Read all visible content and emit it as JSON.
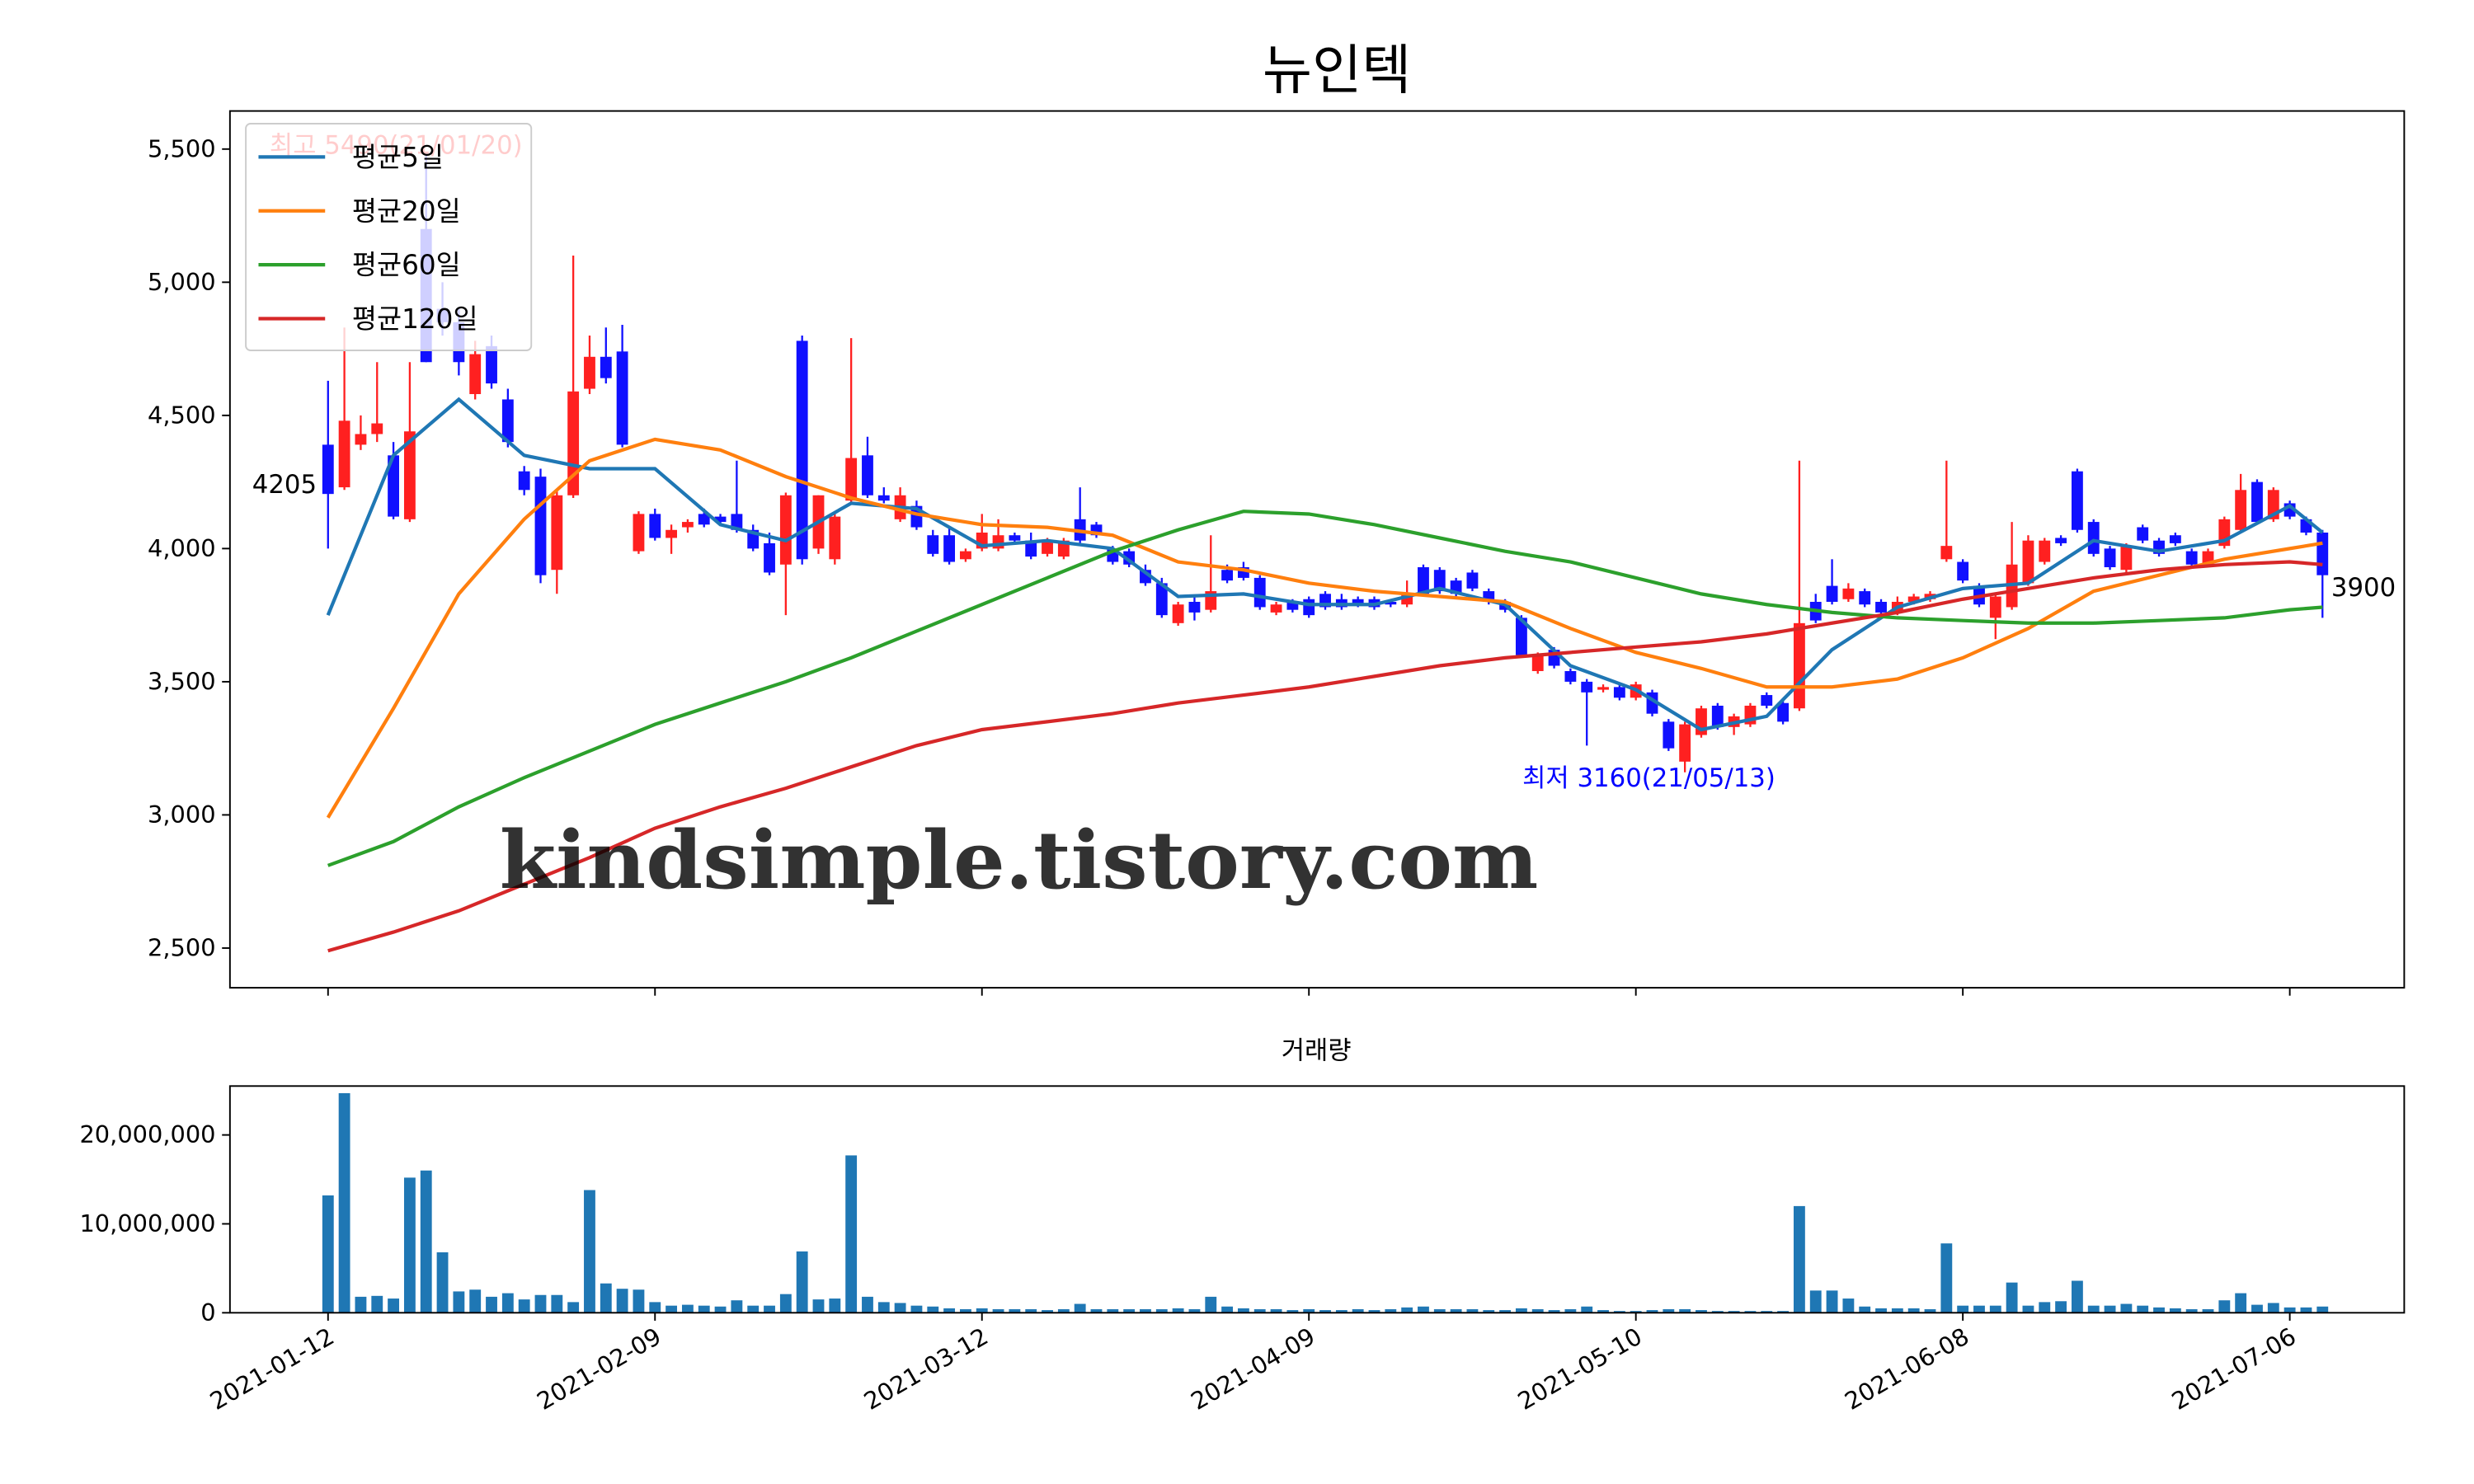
{
  "chart_data": [
    {
      "type": "candlestick",
      "title": "뉴인텍",
      "up_color": "#ff2020",
      "down_color": "#1010ff",
      "xlim": [
        -6,
        127
      ],
      "ylim": [
        2351,
        5643
      ],
      "yticks": [
        {
          "value": 2500,
          "label": "2,500"
        },
        {
          "value": 3000,
          "label": "3,000"
        },
        {
          "value": 3500,
          "label": "3,500"
        },
        {
          "value": 4000,
          "label": "4,000"
        },
        {
          "value": 4500,
          "label": "4,500"
        },
        {
          "value": 5000,
          "label": "5,000"
        },
        {
          "value": 5500,
          "label": "5,500"
        }
      ],
      "legend": "upper left",
      "watermark": "kindsimple.tistory.com",
      "annotations": [
        {
          "text": "최고 5490(21/01/20)",
          "color": "#ff0000"
        },
        {
          "text": "최저 3160(21/05/13)",
          "color": "#0000ff"
        },
        {
          "text": "4205",
          "color": "#000000"
        },
        {
          "text": "3900",
          "color": "#000000"
        }
      ],
      "ohlc": [
        [
          4390,
          4630,
          4000,
          4205
        ],
        [
          4230,
          4830,
          4220,
          4480
        ],
        [
          4390,
          4500,
          4370,
          4430
        ],
        [
          4430,
          4700,
          4400,
          4470
        ],
        [
          4350,
          4400,
          4110,
          4120
        ],
        [
          4110,
          4700,
          4100,
          4440
        ],
        [
          5200,
          5490,
          4700,
          4700
        ],
        [
          4900,
          5000,
          4800,
          4850
        ],
        [
          4850,
          4900,
          4650,
          4700
        ],
        [
          4580,
          4780,
          4560,
          4730
        ],
        [
          4760,
          4800,
          4600,
          4620
        ],
        [
          4560,
          4600,
          4380,
          4400
        ],
        [
          4290,
          4310,
          4200,
          4220
        ],
        [
          4270,
          4300,
          3870,
          3900
        ],
        [
          3920,
          4220,
          3830,
          4200
        ],
        [
          4200,
          5100,
          4190,
          4590
        ],
        [
          4600,
          4800,
          4580,
          4720
        ],
        [
          4720,
          4830,
          4620,
          4640
        ],
        [
          4740,
          4840,
          4380,
          4390
        ],
        [
          3990,
          4140,
          3980,
          4130
        ],
        [
          4130,
          4150,
          4030,
          4040
        ],
        [
          4040,
          4090,
          3980,
          4070
        ],
        [
          4080,
          4110,
          4060,
          4100
        ],
        [
          4130,
          4150,
          4080,
          4090
        ],
        [
          4120,
          4130,
          4090,
          4100
        ],
        [
          4130,
          4330,
          4060,
          4070
        ],
        [
          4070,
          4090,
          3990,
          4000
        ],
        [
          4020,
          4060,
          3900,
          3910
        ],
        [
          3940,
          4210,
          3750,
          4200
        ],
        [
          4780,
          4800,
          3940,
          3960
        ],
        [
          4000,
          4200,
          3980,
          4200
        ],
        [
          3960,
          4130,
          3940,
          4120
        ],
        [
          4180,
          4790,
          4170,
          4340
        ],
        [
          4350,
          4420,
          4190,
          4200
        ],
        [
          4200,
          4230,
          4170,
          4180
        ],
        [
          4110,
          4230,
          4100,
          4200
        ],
        [
          4160,
          4180,
          4070,
          4080
        ],
        [
          4050,
          4070,
          3970,
          3980
        ],
        [
          4050,
          4080,
          3940,
          3950
        ],
        [
          3960,
          4000,
          3950,
          3990
        ],
        [
          4000,
          4130,
          3990,
          4060
        ],
        [
          4000,
          4110,
          3990,
          4050
        ],
        [
          4050,
          4060,
          4020,
          4030
        ],
        [
          4030,
          4060,
          3960,
          3970
        ],
        [
          3980,
          4040,
          3970,
          4030
        ],
        [
          3970,
          4040,
          3960,
          4030
        ],
        [
          4110,
          4230,
          4020,
          4030
        ],
        [
          4090,
          4100,
          4040,
          4050
        ],
        [
          4000,
          4010,
          3940,
          3950
        ],
        [
          3990,
          4000,
          3930,
          3940
        ],
        [
          3920,
          3940,
          3860,
          3870
        ],
        [
          3870,
          3890,
          3740,
          3750
        ],
        [
          3720,
          3800,
          3710,
          3790
        ],
        [
          3800,
          3820,
          3730,
          3760
        ],
        [
          3770,
          4050,
          3760,
          3840
        ],
        [
          3920,
          3940,
          3870,
          3880
        ],
        [
          3930,
          3950,
          3880,
          3890
        ],
        [
          3890,
          3900,
          3770,
          3780
        ],
        [
          3760,
          3800,
          3750,
          3790
        ],
        [
          3800,
          3810,
          3760,
          3770
        ],
        [
          3810,
          3820,
          3740,
          3750
        ],
        [
          3830,
          3840,
          3770,
          3780
        ],
        [
          3810,
          3830,
          3770,
          3780
        ],
        [
          3810,
          3820,
          3780,
          3790
        ],
        [
          3810,
          3820,
          3770,
          3780
        ],
        [
          3800,
          3810,
          3780,
          3790
        ],
        [
          3790,
          3880,
          3780,
          3830
        ],
        [
          3930,
          3940,
          3820,
          3830
        ],
        [
          3920,
          3930,
          3830,
          3840
        ],
        [
          3880,
          3890,
          3820,
          3830
        ],
        [
          3910,
          3920,
          3840,
          3850
        ],
        [
          3840,
          3850,
          3790,
          3800
        ],
        [
          3800,
          3810,
          3760,
          3770
        ],
        [
          3740,
          3750,
          3590,
          3600
        ],
        [
          3540,
          3610,
          3530,
          3600
        ],
        [
          3620,
          3630,
          3550,
          3560
        ],
        [
          3540,
          3550,
          3490,
          3500
        ],
        [
          3500,
          3510,
          3260,
          3460
        ],
        [
          3470,
          3490,
          3460,
          3480
        ],
        [
          3480,
          3490,
          3430,
          3440
        ],
        [
          3440,
          3500,
          3430,
          3490
        ],
        [
          3460,
          3470,
          3370,
          3380
        ],
        [
          3350,
          3360,
          3240,
          3250
        ],
        [
          3200,
          3350,
          3160,
          3340
        ],
        [
          3300,
          3410,
          3290,
          3400
        ],
        [
          3410,
          3420,
          3320,
          3330
        ],
        [
          3330,
          3380,
          3300,
          3370
        ],
        [
          3340,
          3420,
          3330,
          3410
        ],
        [
          3450,
          3460,
          3400,
          3410
        ],
        [
          3420,
          3430,
          3340,
          3350
        ],
        [
          3400,
          4330,
          3390,
          3720
        ],
        [
          3800,
          3830,
          3720,
          3730
        ],
        [
          3860,
          3960,
          3790,
          3800
        ],
        [
          3810,
          3870,
          3800,
          3850
        ],
        [
          3840,
          3850,
          3780,
          3790
        ],
        [
          3800,
          3810,
          3750,
          3760
        ],
        [
          3760,
          3820,
          3750,
          3800
        ],
        [
          3800,
          3830,
          3790,
          3820
        ],
        [
          3810,
          3840,
          3800,
          3830
        ],
        [
          3960,
          4330,
          3950,
          4010
        ],
        [
          3950,
          3960,
          3870,
          3880
        ],
        [
          3860,
          3870,
          3780,
          3790
        ],
        [
          3740,
          3830,
          3660,
          3820
        ],
        [
          3780,
          4100,
          3770,
          3940
        ],
        [
          3870,
          4050,
          3860,
          4030
        ],
        [
          3950,
          4040,
          3940,
          4030
        ],
        [
          4040,
          4050,
          4010,
          4020
        ],
        [
          4290,
          4300,
          4060,
          4070
        ],
        [
          4100,
          4110,
          3970,
          3980
        ],
        [
          4000,
          4010,
          3920,
          3930
        ],
        [
          3920,
          4020,
          3910,
          4010
        ],
        [
          4080,
          4090,
          4020,
          4030
        ],
        [
          4030,
          4040,
          3970,
          3980
        ],
        [
          4050,
          4060,
          4010,
          4020
        ],
        [
          3990,
          4000,
          3930,
          3940
        ],
        [
          3940,
          4000,
          3930,
          3990
        ],
        [
          4010,
          4120,
          4000,
          4110
        ],
        [
          4070,
          4280,
          4060,
          4220
        ],
        [
          4250,
          4260,
          4090,
          4100
        ],
        [
          4110,
          4230,
          4100,
          4220
        ],
        [
          4170,
          4180,
          4110,
          4120
        ],
        [
          4110,
          4120,
          4050,
          4060
        ],
        [
          4060,
          4070,
          3740,
          3900
        ]
      ],
      "series": [
        {
          "name": "평균5일",
          "color": "#1f77b4",
          "x": [
            0,
            4,
            8,
            12,
            16,
            20,
            24,
            28,
            32,
            36,
            40,
            44,
            48,
            52,
            56,
            60,
            64,
            68,
            72,
            76,
            80,
            84,
            88,
            92,
            96,
            100,
            104,
            108,
            112,
            116,
            120,
            122
          ],
          "values": [
            3750,
            4350,
            4560,
            4350,
            4300,
            4300,
            4090,
            4030,
            4170,
            4150,
            4010,
            4030,
            4000,
            3820,
            3830,
            3790,
            3790,
            3850,
            3790,
            3560,
            3470,
            3320,
            3370,
            3620,
            3780,
            3850,
            3870,
            4030,
            3990,
            4030,
            4160,
            4060
          ]
        },
        {
          "name": "평균20일",
          "color": "#ff7f0e",
          "x": [
            0,
            4,
            8,
            12,
            16,
            20,
            24,
            28,
            32,
            36,
            40,
            44,
            48,
            52,
            56,
            60,
            64,
            68,
            72,
            76,
            80,
            84,
            88,
            92,
            96,
            100,
            104,
            108,
            112,
            116,
            120,
            122
          ],
          "values": [
            2990,
            3400,
            3830,
            4110,
            4330,
            4410,
            4370,
            4270,
            4190,
            4130,
            4090,
            4080,
            4050,
            3950,
            3920,
            3870,
            3840,
            3820,
            3800,
            3700,
            3610,
            3550,
            3480,
            3480,
            3510,
            3590,
            3700,
            3840,
            3900,
            3960,
            4000,
            4020
          ]
        },
        {
          "name": "평균60일",
          "color": "#2ca02c",
          "x": [
            0,
            4,
            8,
            12,
            16,
            20,
            24,
            28,
            32,
            36,
            40,
            44,
            48,
            52,
            56,
            60,
            64,
            68,
            72,
            76,
            80,
            84,
            88,
            92,
            96,
            100,
            104,
            108,
            112,
            116,
            120,
            122
          ],
          "values": [
            2810,
            2900,
            3030,
            3140,
            3240,
            3340,
            3420,
            3500,
            3590,
            3690,
            3790,
            3890,
            3990,
            4070,
            4140,
            4130,
            4090,
            4040,
            3990,
            3950,
            3890,
            3830,
            3790,
            3760,
            3740,
            3730,
            3720,
            3720,
            3730,
            3740,
            3770,
            3780
          ]
        },
        {
          "name": "평균120일",
          "color": "#d62728",
          "x": [
            0,
            4,
            8,
            12,
            16,
            20,
            24,
            28,
            32,
            36,
            40,
            44,
            48,
            52,
            56,
            60,
            64,
            68,
            72,
            76,
            80,
            84,
            88,
            92,
            96,
            100,
            104,
            108,
            112,
            116,
            120,
            122
          ],
          "values": [
            2490,
            2560,
            2640,
            2740,
            2840,
            2950,
            3030,
            3100,
            3180,
            3260,
            3320,
            3350,
            3380,
            3420,
            3450,
            3480,
            3520,
            3560,
            3590,
            3610,
            3630,
            3650,
            3680,
            3720,
            3760,
            3810,
            3850,
            3890,
            3920,
            3940,
            3950,
            3940
          ]
        }
      ]
    },
    {
      "type": "bar",
      "title": "거래량",
      "color": "#1f77b4",
      "xlim": [
        -6,
        127
      ],
      "ylim": [
        0,
        25500000
      ],
      "xticks": [
        {
          "value": 0,
          "label": "2021-01-12"
        },
        {
          "value": 20,
          "label": "2021-02-09"
        },
        {
          "value": 40,
          "label": "2021-03-12"
        },
        {
          "value": 60,
          "label": "2021-04-09"
        },
        {
          "value": 80,
          "label": "2021-05-10"
        },
        {
          "value": 100,
          "label": "2021-06-08"
        },
        {
          "value": 120,
          "label": "2021-07-06"
        }
      ],
      "yticks": [
        0,
        {
          "value": 10000000,
          "label": "10,000,000"
        },
        {
          "value": 20000000,
          "label": "20,000,000"
        }
      ],
      "values": [
        13200000,
        24700000,
        1800000,
        1900000,
        1600000,
        15200000,
        16000000,
        6800000,
        2400000,
        2600000,
        1800000,
        2200000,
        1500000,
        2000000,
        2000000,
        1200000,
        13800000,
        3300000,
        2700000,
        2600000,
        1200000,
        800000,
        900000,
        800000,
        700000,
        1400000,
        800000,
        800000,
        2100000,
        6900000,
        1500000,
        1600000,
        17700000,
        1800000,
        1200000,
        1100000,
        800000,
        700000,
        500000,
        400000,
        500000,
        400000,
        400000,
        400000,
        300000,
        400000,
        1000000,
        400000,
        400000,
        400000,
        400000,
        400000,
        500000,
        400000,
        1800000,
        700000,
        500000,
        400000,
        400000,
        300000,
        400000,
        300000,
        300000,
        400000,
        300000,
        400000,
        600000,
        700000,
        400000,
        400000,
        400000,
        300000,
        300000,
        500000,
        400000,
        300000,
        400000,
        700000,
        300000,
        200000,
        200000,
        300000,
        400000,
        400000,
        300000,
        200000,
        200000,
        200000,
        200000,
        200000,
        12000000,
        2500000,
        2500000,
        1600000,
        700000,
        500000,
        500000,
        500000,
        400000,
        7800000,
        800000,
        800000,
        800000,
        3400000,
        800000,
        1200000,
        1300000,
        3600000,
        800000,
        800000,
        1000000,
        800000,
        600000,
        500000,
        400000,
        400000,
        1400000,
        2200000,
        900000,
        1100000,
        600000,
        600000,
        700000
      ]
    }
  ]
}
